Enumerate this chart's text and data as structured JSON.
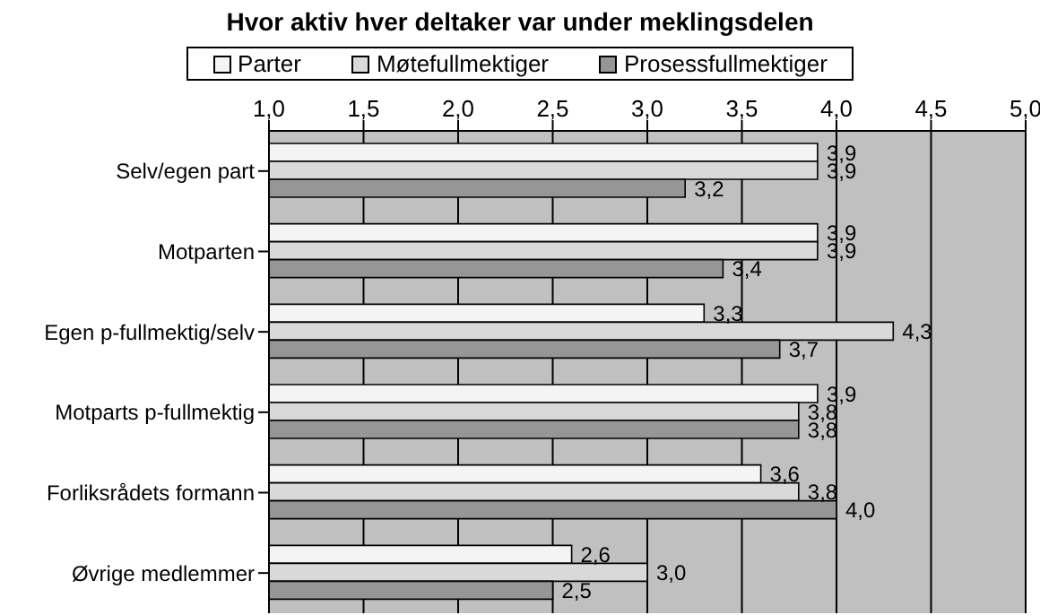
{
  "chart_data": {
    "type": "bar",
    "orientation": "horizontal",
    "title": "Hvor aktiv hver deltaker var under meklingsdelen",
    "categories": [
      "Selv/egen part",
      "Motparten",
      "Egen p-fullmektig/selv",
      "Motparts p-fullmektig",
      "Forliksrådets formann",
      "Øvrige medlemmer"
    ],
    "series": [
      {
        "name": "Parter",
        "color": "#f4f4f4",
        "values": [
          3.9,
          3.9,
          3.3,
          3.9,
          3.6,
          2.6
        ],
        "value_labels": [
          "3,9",
          "3,9",
          "3,3",
          "3,9",
          "3,6",
          "2,6"
        ]
      },
      {
        "name": "Møtefullmektiger",
        "color": "#d9d9d9",
        "values": [
          3.9,
          3.9,
          4.3,
          3.8,
          3.8,
          3.0
        ],
        "value_labels": [
          "3,9",
          "3,9",
          "4,3",
          "3,8",
          "3,8",
          "3,0"
        ]
      },
      {
        "name": "Prosessfullmektiger",
        "color": "#969696",
        "values": [
          3.2,
          3.4,
          3.7,
          3.8,
          4.0,
          2.5
        ],
        "value_labels": [
          "3,2",
          "3,4",
          "3,7",
          "3,8",
          "4,0",
          "2,5"
        ]
      }
    ],
    "xlim": [
      1,
      5
    ],
    "xticks": [
      {
        "value": 1,
        "label": "1,0"
      },
      {
        "value": 1.5,
        "label": "1,5"
      },
      {
        "value": 2,
        "label": "2,0"
      },
      {
        "value": 2.5,
        "label": "2,5"
      },
      {
        "value": 3,
        "label": "3,0"
      },
      {
        "value": 3.5,
        "label": "3,5"
      },
      {
        "value": 4,
        "label": "4,0"
      },
      {
        "value": 4.5,
        "label": "4,5"
      },
      {
        "value": 5,
        "label": "5,0"
      }
    ],
    "grid": "x",
    "legend": "top"
  }
}
